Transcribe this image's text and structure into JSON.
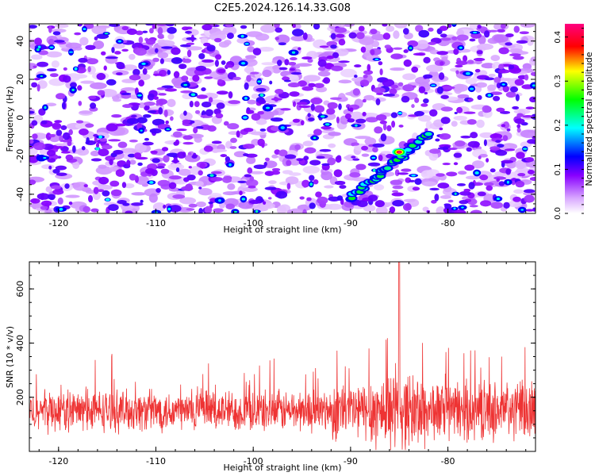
{
  "title": "C2E5.2024.126.14.33.G08",
  "colorbar_label": "Normalized spectral amplitude",
  "colorbar_ticks": [
    "0.0",
    "0.1",
    "0.2",
    "0.3",
    "0.4"
  ],
  "chart_data": [
    {
      "type": "heatmap",
      "xlabel": "Height of straight line (km)",
      "ylabel": "Frequency (Hz)",
      "xlim": [
        -123,
        -71
      ],
      "ylim": [
        -50,
        49
      ],
      "x_ticks": [
        "-120",
        "-110",
        "-100",
        "-90",
        "-80"
      ],
      "y_ticks": [
        "-40",
        "-20",
        "0",
        "20",
        "40"
      ],
      "colorscale": [
        "#ffffff",
        "#e8c8ff",
        "#8800ff",
        "#0000ff",
        "#00ffff",
        "#00ff00",
        "#ffff00",
        "#ff0000",
        "#ff0080"
      ],
      "clim": [
        0.0,
        0.43
      ],
      "ridge": {
        "x_start": -90,
        "y_start": -42,
        "x_end": -82,
        "y_end": -9,
        "peak_x": -85,
        "peak_y": -18,
        "peak_value": 0.42
      }
    },
    {
      "type": "line",
      "xlabel": "Height of straight line (km)",
      "ylabel": "SNR (10 * v/v)",
      "xlim": [
        -123,
        -71
      ],
      "ylim": [
        0,
        700
      ],
      "x_ticks": [
        "-120",
        "-110",
        "-100",
        "-90",
        "-80"
      ],
      "y_ticks": [
        "200",
        "400",
        "600"
      ],
      "series": [
        {
          "color": "#ee3333",
          "baseline": 150,
          "peak_x": -85,
          "peak_value": 700
        }
      ]
    }
  ]
}
